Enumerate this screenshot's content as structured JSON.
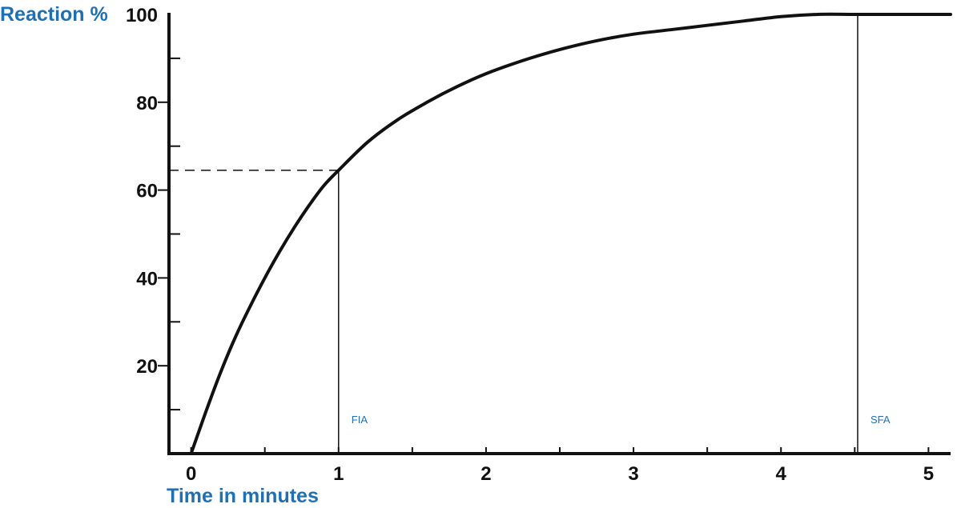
{
  "chart_data": {
    "type": "line",
    "title": "",
    "xlabel": "Time in minutes",
    "ylabel": "Reaction %",
    "xlim": [
      -0.15,
      5.15
    ],
    "ylim": [
      0,
      100
    ],
    "x_ticks": [
      0,
      1,
      2,
      3,
      4,
      5
    ],
    "x_tick_labels": [
      "0",
      "1",
      "2",
      "3",
      "4",
      "5"
    ],
    "x_minor_ticks": [
      0.5,
      1.5,
      2.5,
      3.5,
      4.5
    ],
    "y_ticks": [
      20,
      40,
      60,
      80,
      100
    ],
    "y_tick_labels": [
      "20",
      "40",
      "60",
      "80",
      "100"
    ],
    "y_minor_ticks": [
      10,
      30,
      50,
      70,
      90
    ],
    "grid": false,
    "series": [
      {
        "x": [
          0,
          0.1,
          0.2,
          0.3,
          0.4,
          0.5,
          0.6,
          0.7,
          0.8,
          0.9,
          1.0,
          1.2,
          1.4,
          1.6,
          1.8,
          2.0,
          2.25,
          2.5,
          2.75,
          3.0,
          3.25,
          3.5,
          3.75,
          4.0,
          4.25,
          4.5,
          4.75,
          5.0,
          5.15
        ],
        "y": [
          0,
          9.5,
          18.5,
          26.5,
          33.5,
          40,
          46,
          51.5,
          56.5,
          61,
          64.5,
          71,
          76,
          80,
          83.5,
          86.5,
          89.5,
          92,
          94,
          95.5,
          96.5,
          97.5,
          98.5,
          99.5,
          100,
          100,
          100,
          100,
          100
        ]
      }
    ],
    "reference_lines": [
      {
        "label": "FIA",
        "x": 1.0,
        "y": 64.5
      },
      {
        "label": "SFA",
        "x": 4.52
      }
    ],
    "colors": {
      "line": "#111111",
      "axis": "#111111",
      "label": "#1f6fb2"
    }
  }
}
